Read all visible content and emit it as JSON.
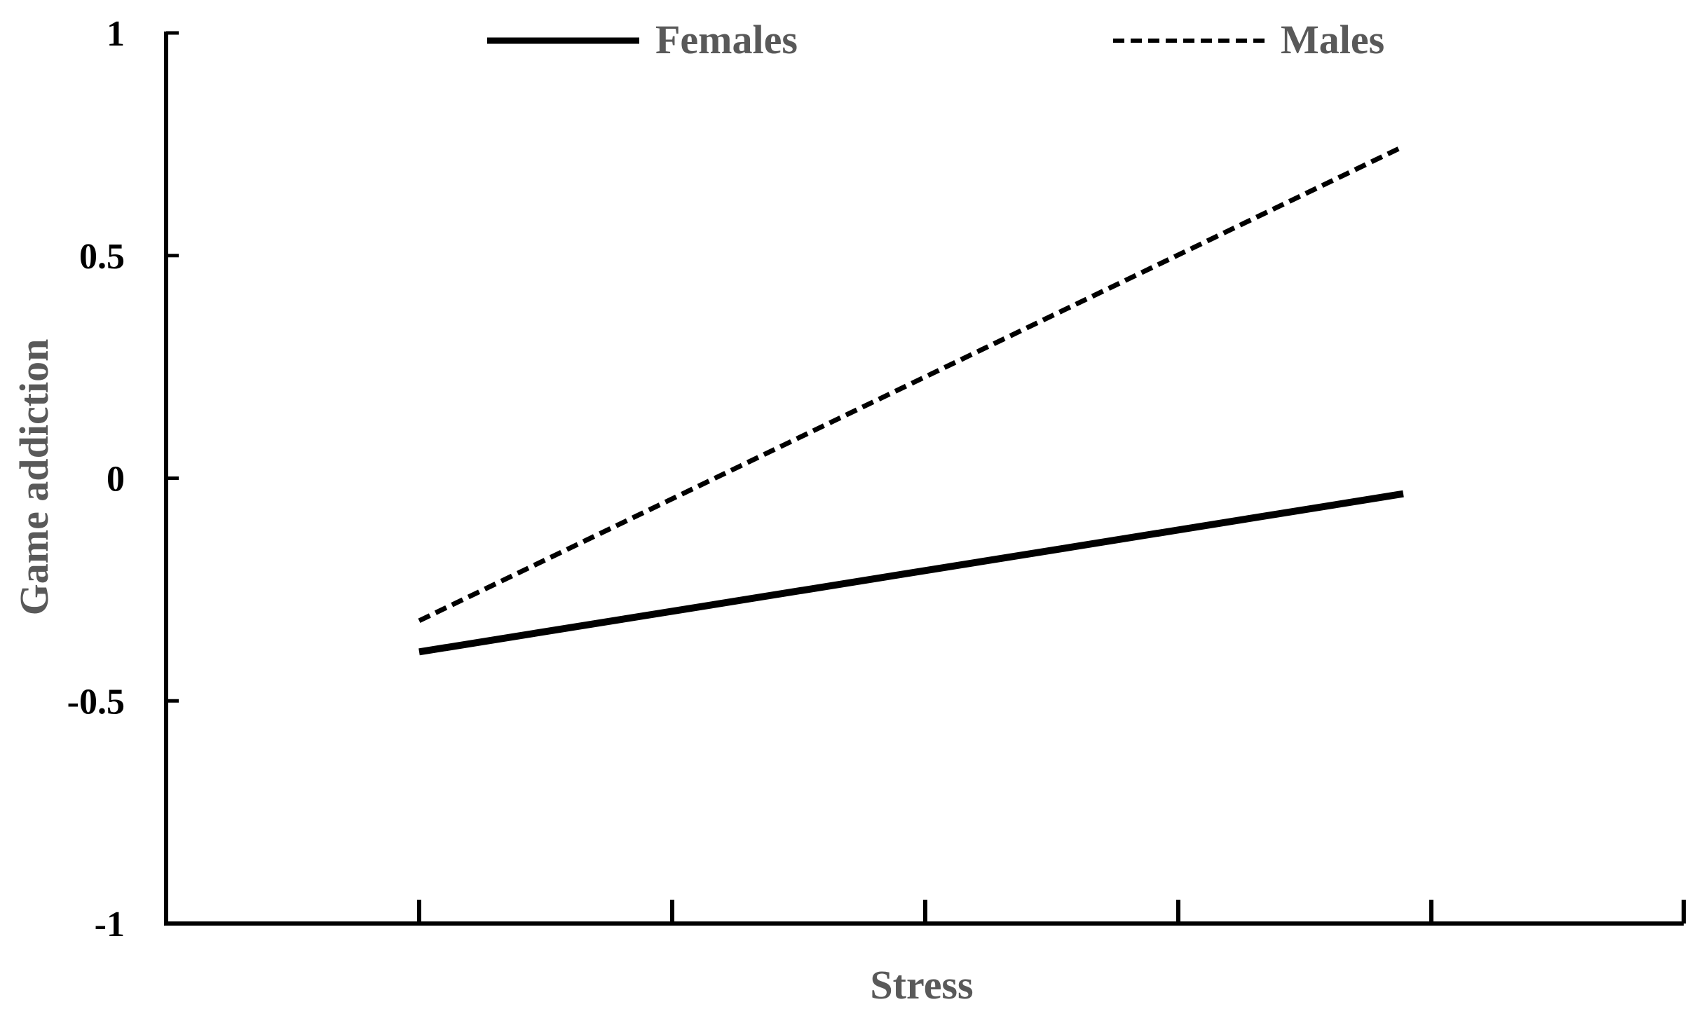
{
  "chart_data": {
    "type": "line",
    "title": "",
    "xlabel": "Stress",
    "ylabel": "Game addiction",
    "ylim": [
      -1,
      1
    ],
    "y_ticks": [
      "1",
      "0.5",
      "0",
      "-0.5",
      "-1"
    ],
    "y_tick_values": [
      1,
      0.5,
      0,
      -0.5,
      -1
    ],
    "x_ticks_count": 6,
    "x": [
      1,
      5
    ],
    "grid": false,
    "legend_position": "top",
    "series": [
      {
        "name": "Females",
        "values": [
          -0.39,
          -0.035
        ],
        "color": "#000000",
        "style": "solid"
      },
      {
        "name": "Males",
        "values": [
          -0.32,
          0.745
        ],
        "color": "#000000",
        "style": "dashed"
      }
    ]
  }
}
